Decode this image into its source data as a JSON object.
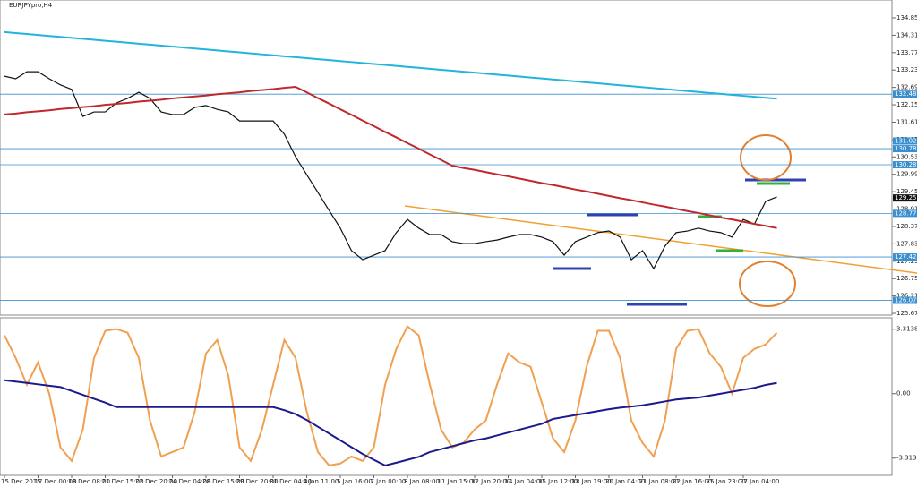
{
  "chart_data": [
    {
      "type": "line",
      "title": "EURJPYpro,H4",
      "ylim": [
        125.617,
        135.408
      ],
      "yticks": [
        125.672,
        126.212,
        126.752,
        127.292,
        127.832,
        128.372,
        128.912,
        129.452,
        129.992,
        130.532,
        131.072,
        131.612,
        132.152,
        132.692,
        133.232,
        133.772,
        134.312,
        134.852
      ],
      "levels": [
        132.482,
        131.028,
        130.789,
        130.289,
        128.778,
        127.423,
        126.077
      ],
      "level_color": "#3a8fd0",
      "current_price": 129.257,
      "grid": false,
      "series": [
        {
          "color": "#111111",
          "values": [
            133.04,
            132.96,
            133.18,
            133.18,
            132.96,
            132.77,
            132.63,
            131.79,
            131.93,
            131.93,
            132.21,
            132.35,
            132.54,
            132.35,
            131.93,
            131.85,
            131.85,
            132.07,
            132.13,
            132.01,
            131.93,
            131.65,
            131.65,
            131.65,
            131.65,
            131.24,
            130.54,
            129.98,
            129.43,
            128.87,
            128.32,
            127.62,
            127.34,
            127.48,
            127.62,
            128.18,
            128.59,
            128.32,
            128.12,
            128.12,
            127.9,
            127.84,
            127.84,
            127.9,
            127.95,
            128.04,
            128.12,
            128.12,
            128.04,
            127.9,
            127.48,
            127.9,
            128.04,
            128.18,
            128.23,
            128.04,
            127.34,
            127.62,
            127.06,
            127.76,
            128.18,
            128.23,
            128.32,
            128.23,
            128.18,
            128.04,
            128.59,
            128.45,
            129.15,
            129.29
          ]
        },
        {
          "color": "#22b4dc",
          "values": [
            134.41,
            134.38,
            134.35,
            134.32,
            134.29,
            134.26,
            134.23,
            134.2,
            134.17,
            134.14,
            134.11,
            134.08,
            134.05,
            134.02,
            133.99,
            133.96,
            133.93,
            133.9,
            133.87,
            133.84,
            133.81,
            133.78,
            133.75,
            133.72,
            133.69,
            133.66,
            133.63,
            133.6,
            133.57,
            133.54,
            133.51,
            133.48,
            133.45,
            133.42,
            133.39,
            133.36,
            133.33,
            133.3,
            133.27,
            133.24,
            133.21,
            133.18,
            133.15,
            133.12,
            133.09,
            133.06,
            133.03,
            133.0,
            132.97,
            132.94,
            132.91,
            132.88,
            132.85,
            132.82,
            132.79,
            132.76,
            132.73,
            132.7,
            132.67,
            132.64,
            132.61,
            132.58,
            132.55,
            132.52,
            132.49,
            132.46,
            132.43,
            132.4,
            132.37,
            132.34
          ]
        },
        {
          "color": "#c0282d",
          "values": [
            131.85,
            131.88,
            131.92,
            131.95,
            131.98,
            132.02,
            132.05,
            132.08,
            132.11,
            132.15,
            132.18,
            132.21,
            132.25,
            132.28,
            132.31,
            132.35,
            132.38,
            132.41,
            132.44,
            132.48,
            132.51,
            132.54,
            132.58,
            132.61,
            132.64,
            132.68,
            132.71,
            132.54,
            132.36,
            132.19,
            132.01,
            131.84,
            131.66,
            131.49,
            131.31,
            131.14,
            130.96,
            130.79,
            130.61,
            130.44,
            130.26,
            130.19,
            130.13,
            130.06,
            129.99,
            129.93,
            129.86,
            129.79,
            129.72,
            129.66,
            129.59,
            129.52,
            129.46,
            129.39,
            129.32,
            129.25,
            129.19,
            129.12,
            129.05,
            128.99,
            128.92,
            128.85,
            128.79,
            128.72,
            128.65,
            128.59,
            128.52,
            128.45,
            128.39,
            128.32
          ]
        }
      ]
    },
    {
      "type": "line",
      "ylim": [
        -4.2,
        3.9
      ],
      "yticks": [
        -3.3138,
        {
          "value": 0,
          "label": "0.00"
        },
        3.3138
      ],
      "categories": [
        "15 Dec 2015",
        null,
        null,
        "17 Dec 00:00",
        null,
        null,
        "18 Dec 08:00",
        null,
        null,
        "21 Dec 15:00",
        null,
        null,
        "22 Dec 20:00",
        null,
        null,
        "24 Dec 04:00",
        null,
        null,
        "28 Dec 15:00",
        null,
        null,
        "29 Dec 20:00",
        null,
        null,
        "31 Dec 04:00",
        null,
        null,
        "4 Jan 11:00",
        null,
        null,
        "5 Jan 16:00",
        null,
        null,
        "7 Jan 00:00",
        null,
        null,
        "8 Jan 08:00",
        null,
        null,
        "11 Jan 15:00",
        null,
        null,
        "12 Jan 20:00",
        null,
        null,
        "14 Jan 04:00",
        null,
        null,
        "15 Jan 12:00",
        null,
        null,
        "18 Jan 19:00",
        null,
        null,
        "20 Jan 04:00",
        null,
        null,
        "21 Jan 08:00",
        null,
        null,
        "22 Jan 16:00",
        null,
        null,
        "25 Jan 23:00",
        null,
        null,
        "27 Jan 04:00",
        null,
        null,
        null
      ],
      "series": [
        {
          "color": "#f0a050",
          "values": [
            3.0,
            1.84,
            0.46,
            1.61,
            0,
            -2.76,
            -3.46,
            -1.84,
            1.84,
            3.23,
            3.32,
            3.13,
            1.84,
            -1.38,
            -3.23,
            -3.0,
            -2.76,
            -0.92,
            2.07,
            2.76,
            0.92,
            -2.76,
            -3.46,
            -1.84,
            0.46,
            2.76,
            1.84,
            -0.92,
            -3.0,
            -3.69,
            -3.59,
            -3.23,
            -3.46,
            -2.76,
            0.46,
            2.3,
            3.46,
            3.0,
            0.46,
            -1.84,
            -2.76,
            -2.53,
            -1.84,
            -1.38,
            0.46,
            2.07,
            1.61,
            1.38,
            -0.46,
            -2.3,
            -3.0,
            -1.38,
            1.38,
            3.23,
            3.23,
            1.84,
            -1.38,
            -2.53,
            -3.23,
            -1.38,
            2.3,
            3.23,
            3.32,
            2.07,
            1.38,
            0,
            1.84,
            2.3,
            2.53,
            3.13
          ]
        },
        {
          "color": "#1a1a8c",
          "values": [
            0.69,
            0.62,
            0.55,
            0.48,
            0.41,
            0.34,
            0.14,
            -0.06,
            -0.26,
            -0.46,
            -0.69,
            -0.69,
            -0.69,
            -0.69,
            -0.69,
            -0.69,
            -0.69,
            -0.69,
            -0.69,
            -0.69,
            -0.69,
            -0.69,
            -0.69,
            -0.69,
            -0.69,
            -0.85,
            -1.05,
            -1.35,
            -1.7,
            -2.05,
            -2.4,
            -2.75,
            -3.1,
            -3.4,
            -3.69,
            -3.55,
            -3.4,
            -3.25,
            -3.0,
            -2.85,
            -2.7,
            -2.55,
            -2.4,
            -2.3,
            -2.15,
            -2.0,
            -1.85,
            -1.7,
            -1.55,
            -1.3,
            -1.2,
            -1.1,
            -1.0,
            -0.9,
            -0.8,
            -0.72,
            -0.66,
            -0.6,
            -0.5,
            -0.4,
            -0.3,
            -0.25,
            -0.2,
            -0.1,
            0.0,
            0.1,
            0.2,
            0.3,
            0.45,
            0.55
          ]
        }
      ]
    }
  ]
}
